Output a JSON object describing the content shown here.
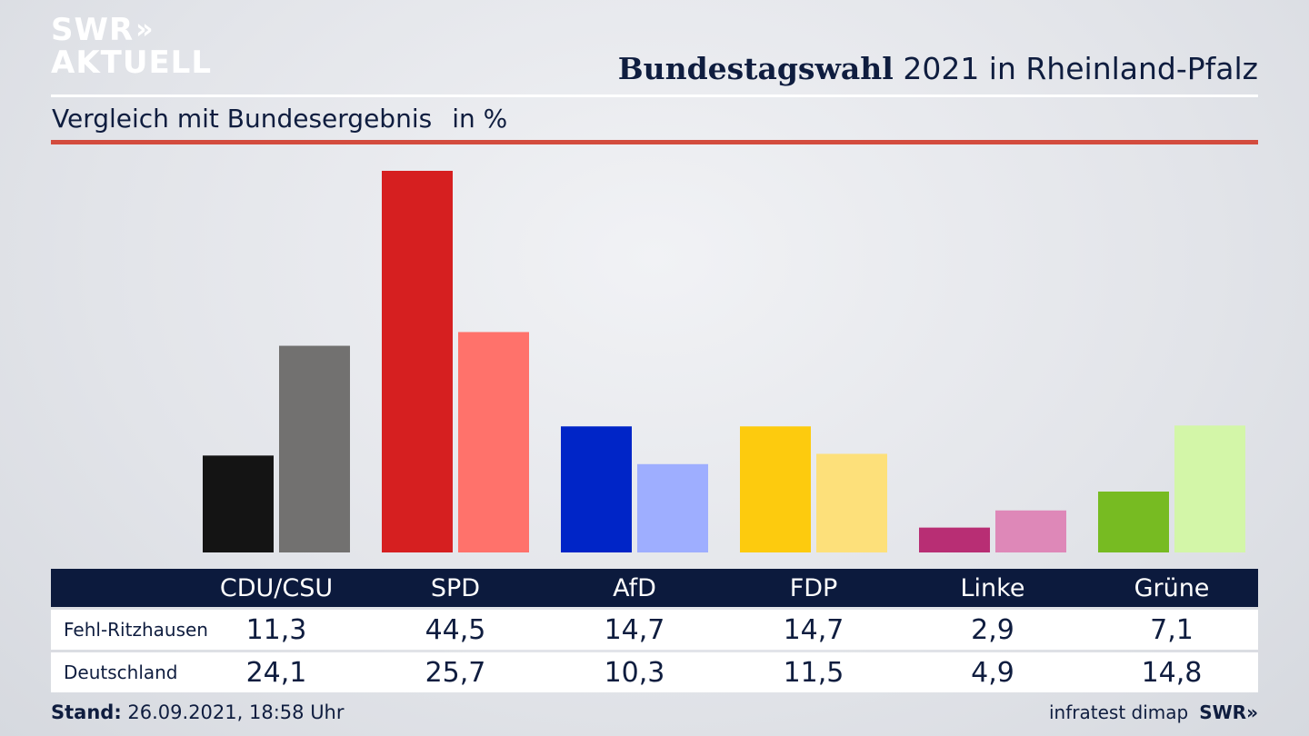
{
  "brand": {
    "line1": "SWR",
    "line1_arrows": "»",
    "line2": "AKTUELL"
  },
  "header": {
    "title_bold": "Bundestagswahl",
    "title_rest": "2021 in Rheinland-Pfalz"
  },
  "subtitle": {
    "text": "Vergleich mit Bundesergebnis",
    "unit": "in %"
  },
  "table": {
    "rows": [
      {
        "label": "Fehl-Ritzhausen",
        "values": [
          "11,3",
          "44,5",
          "14,7",
          "14,7",
          "2,9",
          "7,1"
        ]
      },
      {
        "label": "Deutschland",
        "values": [
          "24,1",
          "25,7",
          "10,3",
          "11,5",
          "4,9",
          "14,8"
        ]
      }
    ]
  },
  "footer": {
    "stand_label": "Stand:",
    "stand_value": "26.09.2021, 18:58 Uhr",
    "source": "infratest dimap",
    "swr": "SWR»"
  },
  "chart_data": {
    "type": "bar",
    "categories": [
      "CDU/CSU",
      "SPD",
      "AfD",
      "FDP",
      "Linke",
      "Grüne"
    ],
    "series": [
      {
        "name": "Fehl-Ritzhausen",
        "values": [
          11.3,
          44.5,
          14.7,
          14.7,
          2.9,
          7.1
        ],
        "colors": [
          "#141414",
          "#d61f20",
          "#0025c7",
          "#fdcb0e",
          "#b82e74",
          "#77bb22"
        ]
      },
      {
        "name": "Deutschland",
        "values": [
          24.1,
          25.7,
          10.3,
          11.5,
          4.9,
          14.8
        ],
        "colors": [
          "#727170",
          "#ff726b",
          "#9eaeff",
          "#fde07a",
          "#de88b8",
          "#d3f6a8"
        ]
      }
    ],
    "title": "Bundestagswahl 2021 in Rheinland-Pfalz",
    "subtitle": "Vergleich mit Bundesergebnis in %",
    "ylim": [
      0,
      44.5
    ],
    "grid": false,
    "legend": "none"
  }
}
